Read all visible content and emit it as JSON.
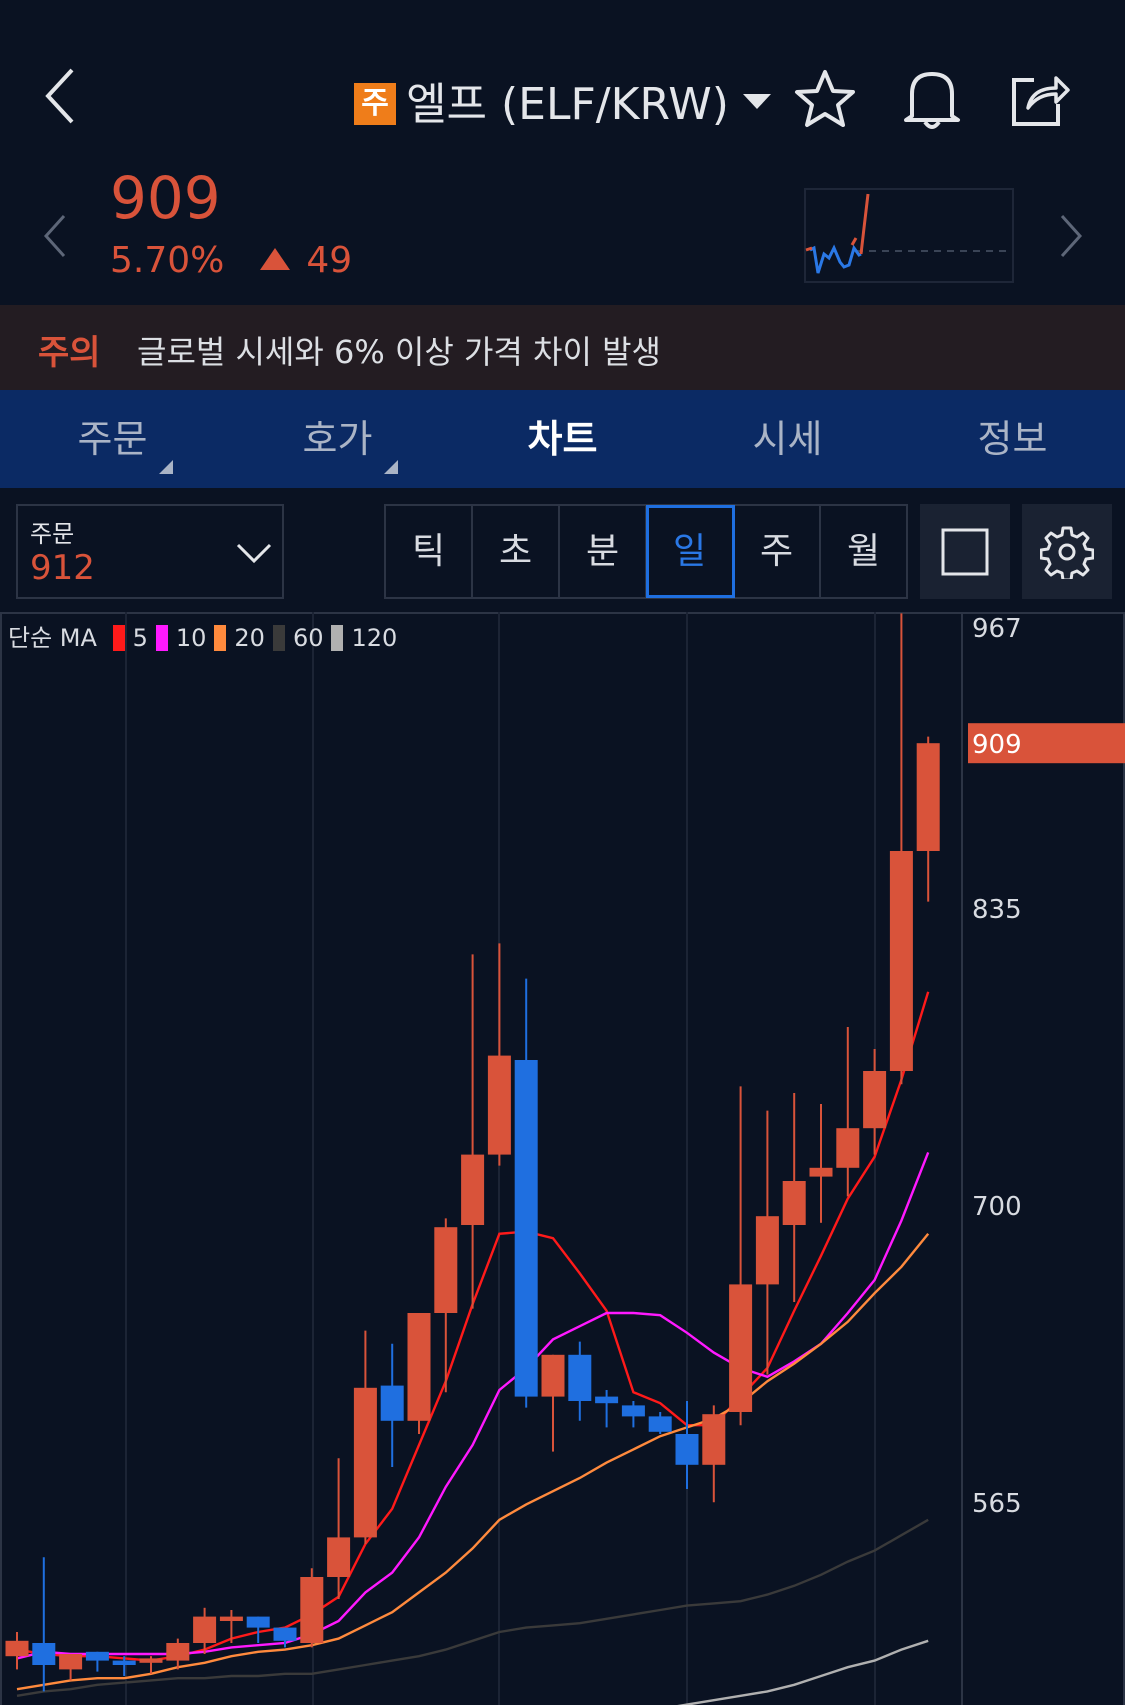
{
  "header": {
    "badge": "주",
    "title": "엘프 (ELF/KRW)"
  },
  "quote": {
    "price": "909",
    "change_pct": "5.70%",
    "change_abs": "49",
    "color_up": "#d9533a",
    "color_down": "#1f6fe0"
  },
  "warning": {
    "label": "주의",
    "text": "글로벌 시세와 6% 이상 가격 차이 발생"
  },
  "tabs": [
    {
      "label": "주문"
    },
    {
      "label": "호가"
    },
    {
      "label": "차트",
      "active": true
    },
    {
      "label": "시세"
    },
    {
      "label": "정보"
    }
  ],
  "order_box": {
    "label": "주문",
    "value": "912"
  },
  "periods": [
    {
      "label": "틱"
    },
    {
      "label": "초"
    },
    {
      "label": "분"
    },
    {
      "label": "일",
      "selected": true
    },
    {
      "label": "주"
    },
    {
      "label": "월"
    }
  ],
  "chart_data": {
    "type": "candlestick",
    "legend": {
      "prefix": "단순 MA",
      "items": [
        {
          "name": "5",
          "color": "#ff1a1a"
        },
        {
          "name": "10",
          "color": "#ff19ff"
        },
        {
          "name": "20",
          "color": "#ff8a3d"
        },
        {
          "name": "60",
          "color": "#3a3a3a"
        },
        {
          "name": "120",
          "color": "#b0b0b0"
        }
      ]
    },
    "y_ticks": [
      "967",
      "835",
      "700",
      "565"
    ],
    "current_price_label": "909",
    "candles": [
      [
        494,
        505,
        488,
        501
      ],
      [
        500,
        539,
        478,
        490
      ],
      [
        488,
        495,
        483,
        495
      ],
      [
        496,
        496,
        487,
        492
      ],
      [
        492,
        494,
        485,
        490
      ],
      [
        491,
        494,
        486,
        493
      ],
      [
        492,
        502,
        488,
        500
      ],
      [
        500,
        516,
        495,
        512
      ],
      [
        510,
        515,
        500,
        512
      ],
      [
        512,
        512,
        500,
        507
      ],
      [
        507,
        507,
        498,
        501
      ],
      [
        500,
        534,
        498,
        530
      ],
      [
        530,
        584,
        520,
        548
      ],
      [
        548,
        642,
        545,
        616
      ],
      [
        617,
        636,
        580,
        601
      ],
      [
        601,
        650,
        595,
        650
      ],
      [
        650,
        693,
        614,
        689
      ],
      [
        690,
        813,
        652,
        722
      ],
      [
        722,
        818,
        717,
        767
      ],
      [
        765,
        802,
        607,
        612
      ],
      [
        612,
        631,
        587,
        631
      ],
      [
        631,
        637,
        601,
        610
      ],
      [
        612,
        615,
        598,
        609
      ],
      [
        608,
        610,
        598,
        603
      ],
      [
        603,
        605,
        595,
        596
      ],
      [
        595,
        610,
        570,
        581
      ],
      [
        581,
        608,
        564,
        604
      ],
      [
        605,
        753,
        599,
        663
      ],
      [
        663,
        742,
        622,
        694
      ],
      [
        690,
        750,
        655,
        710
      ],
      [
        712,
        745,
        691,
        716
      ],
      [
        716,
        780,
        703,
        734
      ],
      [
        734,
        770,
        722,
        760
      ],
      [
        760,
        968,
        754,
        860
      ],
      [
        860,
        912,
        837,
        909
      ]
    ],
    "ma": {
      "5": [
        497,
        495,
        494,
        494,
        493,
        492,
        494,
        497,
        502,
        505,
        507,
        513,
        521,
        545,
        561,
        590,
        619,
        654,
        686,
        687,
        684,
        668,
        651,
        614,
        609,
        599,
        599,
        612,
        625,
        651,
        676,
        702,
        721,
        756,
        796
      ],
      "10": [
        493,
        496,
        495,
        495,
        495,
        495,
        495,
        496,
        498,
        499,
        500,
        504,
        510,
        523,
        532,
        548,
        571,
        590,
        615,
        625,
        638,
        644,
        650,
        650,
        649,
        641,
        632,
        625,
        621,
        628,
        636,
        650,
        665,
        692,
        723
      ],
      "20": [
        479,
        481,
        483,
        484,
        484,
        486,
        489,
        491,
        494,
        496,
        497,
        499,
        502,
        508,
        514,
        523,
        532,
        543,
        556,
        563,
        569,
        575,
        582,
        588,
        594,
        598,
        602,
        609,
        619,
        627,
        636,
        646,
        659,
        671,
        686
      ],
      "60": [
        476,
        478,
        479,
        481,
        482,
        483,
        484,
        484,
        485,
        485,
        486,
        486,
        488,
        490,
        492,
        494,
        497,
        501,
        505,
        507,
        508,
        509,
        511,
        513,
        515,
        517,
        518,
        519,
        522,
        526,
        531,
        537,
        542,
        549,
        556
      ],
      "120": [
        null,
        null,
        null,
        null,
        null,
        null,
        null,
        null,
        null,
        null,
        null,
        null,
        null,
        null,
        null,
        null,
        null,
        null,
        null,
        null,
        null,
        null,
        null,
        null,
        470,
        472,
        474,
        476,
        478,
        481,
        485,
        489,
        492,
        497,
        501
      ]
    }
  }
}
